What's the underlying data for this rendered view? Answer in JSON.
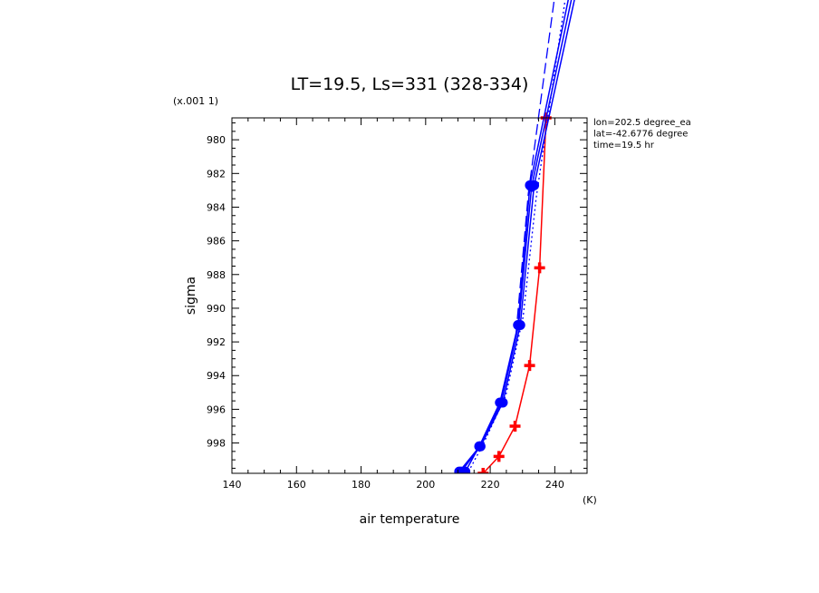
{
  "chart_data": {
    "type": "line",
    "title": "LT=19.5, Ls=331 (328-334)",
    "xlabel": "air temperature",
    "xunit": "(K)",
    "ylabel": "sigma",
    "yscale_label": "(x.001 1)",
    "xlim": [
      140,
      250
    ],
    "ylim": [
      999.8,
      978.7
    ],
    "y_inverted": true,
    "xticks": [
      140,
      160,
      180,
      200,
      220,
      240
    ],
    "yticks": [
      980,
      982,
      984,
      986,
      988,
      990,
      992,
      994,
      996,
      998
    ],
    "info_lines": [
      "lon=202.5 degree_ea",
      "lat=-42.6776 degree",
      "time=19.5 hr"
    ],
    "colors": {
      "red": "#ff0000",
      "blue": "#0000ff"
    },
    "series": [
      {
        "color": "red",
        "style": "solid",
        "marker": "plus",
        "points": [
          [
            237.3,
            978.7
          ],
          [
            235.3,
            987.6
          ],
          [
            232.2,
            993.4
          ],
          [
            227.7,
            997.0
          ],
          [
            222.7,
            998.8
          ],
          [
            217.8,
            999.8
          ]
        ]
      },
      {
        "color": "blue",
        "style": "solid",
        "marker": "circle",
        "points": [
          [
            248.0,
            970.0
          ],
          [
            233.6,
            982.7
          ],
          [
            229.3,
            991.0
          ],
          [
            223.9,
            995.6
          ],
          [
            217.0,
            998.2
          ],
          [
            211.0,
            999.7
          ]
        ]
      },
      {
        "color": "blue",
        "style": "solid",
        "marker": "circle",
        "points": [
          [
            247.0,
            970.0
          ],
          [
            232.8,
            982.8
          ],
          [
            228.8,
            991.0
          ],
          [
            223.4,
            995.6
          ],
          [
            216.8,
            998.2
          ],
          [
            210.4,
            999.7
          ]
        ]
      },
      {
        "color": "blue",
        "style": "solid",
        "marker": "circle",
        "points": [
          [
            246.0,
            970.0
          ],
          [
            232.3,
            982.7
          ],
          [
            228.6,
            991.0
          ],
          [
            223.0,
            995.6
          ],
          [
            216.6,
            998.2
          ],
          [
            212.3,
            999.7
          ]
        ]
      },
      {
        "color": "blue",
        "style": "dashed",
        "marker": "none",
        "points": [
          [
            241.0,
            970.0
          ],
          [
            231.8,
            983.2
          ],
          [
            228.0,
            991.5
          ],
          [
            222.8,
            996.0
          ],
          [
            216.5,
            998.4
          ],
          [
            210.0,
            999.8
          ]
        ]
      },
      {
        "color": "blue",
        "style": "dotted",
        "marker": "none",
        "points": [
          [
            244.5,
            970.0
          ],
          [
            234.2,
            983.5
          ],
          [
            230.2,
            990.5
          ],
          [
            224.8,
            995.2
          ],
          [
            218.0,
            998.0
          ],
          [
            213.0,
            999.8
          ]
        ]
      }
    ]
  }
}
